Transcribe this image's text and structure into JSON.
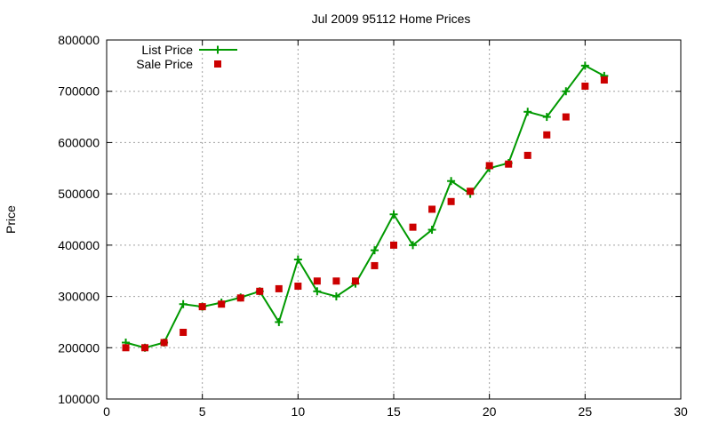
{
  "chart_data": {
    "type": "line",
    "title": "Jul 2009 95112 Home Prices",
    "xlabel": "",
    "ylabel": "Price",
    "xlim": [
      0,
      30
    ],
    "ylim": [
      100000,
      800000
    ],
    "x_ticks": [
      0,
      5,
      10,
      15,
      20,
      25,
      30
    ],
    "y_ticks": [
      100000,
      200000,
      300000,
      400000,
      500000,
      600000,
      700000,
      800000
    ],
    "x_tick_labels": [
      "0",
      "5",
      "10",
      "15",
      "20",
      "25",
      "30"
    ],
    "y_tick_labels": [
      "100000",
      "200000",
      "300000",
      "400000",
      "500000",
      "600000",
      "700000",
      "800000"
    ],
    "grid": true,
    "legend_position": "top-left",
    "series": [
      {
        "name": "List Price",
        "style": "line-plus",
        "color": "#009900",
        "x": [
          1,
          2,
          3,
          4,
          5,
          6,
          7,
          8,
          9,
          10,
          11,
          12,
          13,
          14,
          15,
          16,
          17,
          18,
          19,
          20,
          21,
          22,
          23,
          24,
          25,
          26
        ],
        "values": [
          210000,
          200000,
          210000,
          285000,
          280000,
          288000,
          298000,
          310000,
          250000,
          372000,
          310000,
          300000,
          325000,
          390000,
          460000,
          400000,
          430000,
          525000,
          500000,
          550000,
          560000,
          660000,
          650000,
          700000,
          750000,
          730000
        ]
      },
      {
        "name": "Sale Price",
        "style": "square-points",
        "color": "#cc0000",
        "x": [
          1,
          2,
          3,
          4,
          5,
          6,
          7,
          8,
          9,
          10,
          11,
          12,
          13,
          14,
          15,
          16,
          17,
          18,
          19,
          20,
          21,
          22,
          23,
          24,
          25,
          26
        ],
        "values": [
          200000,
          200000,
          210000,
          230000,
          280000,
          285000,
          297000,
          310000,
          315000,
          320000,
          330000,
          330000,
          330000,
          360000,
          400000,
          435000,
          470000,
          485000,
          505000,
          555000,
          558000,
          575000,
          615000,
          650000,
          710000,
          722000
        ]
      }
    ]
  }
}
